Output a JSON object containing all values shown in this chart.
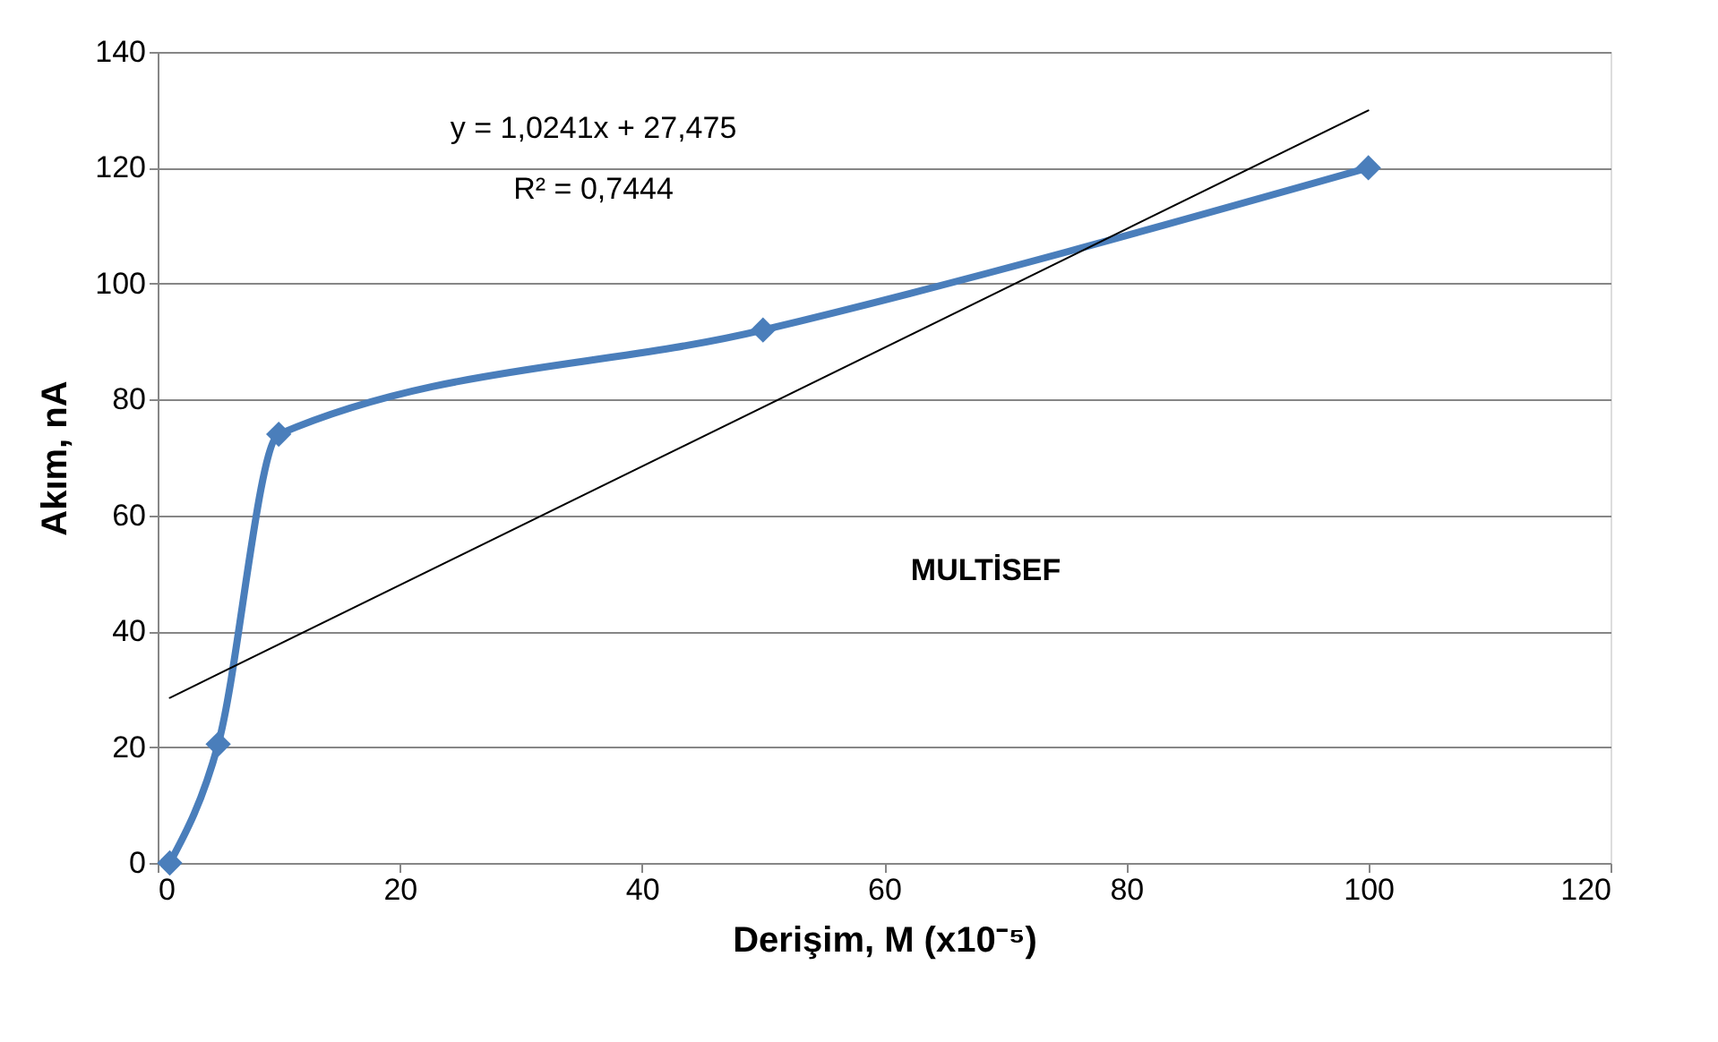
{
  "chart_data": {
    "type": "line",
    "xlabel": "Derişim, M (x10⁻⁵)",
    "ylabel": "Akım, nA",
    "x": [
      1,
      5,
      10,
      50,
      100
    ],
    "series": [
      {
        "color": "#4a7ebb",
        "values": [
          0,
          20.5,
          74,
          92,
          120
        ],
        "marker": "diamond"
      },
      {
        "type": "line",
        "color": "#000000",
        "x": [
          1,
          100
        ],
        "values": [
          28.5,
          129.9
        ],
        "marker": "none"
      }
    ],
    "xlim": [
      0,
      120
    ],
    "xticks": [
      0,
      20,
      40,
      60,
      80,
      100,
      120
    ],
    "ylim": [
      0,
      140
    ],
    "yticks": [
      0,
      20,
      40,
      60,
      80,
      100,
      120,
      140
    ],
    "grid": "y",
    "annotations": [
      "y = 1,0241x + 27,475",
      "R² = 0,7444",
      "MULTİSEF"
    ]
  }
}
